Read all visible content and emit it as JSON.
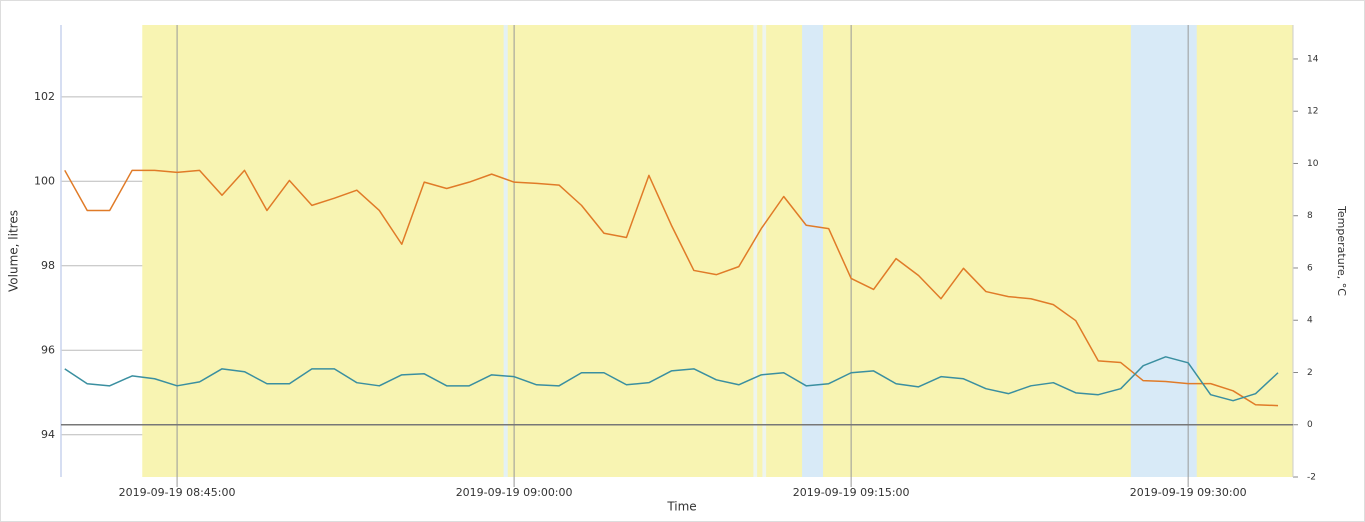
{
  "chart_data": {
    "type": "line",
    "x_label": "Time",
    "y_label": "Volume, litres",
    "y2_label": "Temperature, °C",
    "xlim": [
      "2019-09-19 08:39:50",
      "2019-09-19 09:34:40"
    ],
    "xticks": [
      "2019-09-19 08:45:00",
      "2019-09-19 09:00:00",
      "2019-09-19 09:15:00",
      "2019-09-19 09:30:00"
    ],
    "ylim": [
      93,
      103.7
    ],
    "yticks": [
      94,
      96,
      98,
      100,
      102
    ],
    "y2lim": [
      -2,
      15.3
    ],
    "y2ticks": [
      -2,
      0,
      2,
      4,
      6,
      8,
      10,
      12,
      14
    ],
    "grid": true,
    "bands": [
      {
        "start": "2019-09-19 08:43:27",
        "end": "2019-09-19 09:34:40",
        "color": "#f8f4b2"
      },
      {
        "start": "2019-09-19 08:59:32",
        "end": "2019-09-19 08:59:43",
        "color": "#e4f1f4"
      },
      {
        "start": "2019-09-19 09:10:39",
        "end": "2019-09-19 09:10:49",
        "color": "#eef5ee"
      },
      {
        "start": "2019-09-19 09:11:03",
        "end": "2019-09-19 09:11:13",
        "color": "#eef5ee"
      },
      {
        "start": "2019-09-19 09:12:49",
        "end": "2019-09-19 09:13:45",
        "color": "#d8eaf7"
      },
      {
        "start": "2019-09-19 09:27:27",
        "end": "2019-09-19 09:30:23",
        "color": "#d8eaf7"
      }
    ],
    "x": [
      "2019-09-19 08:40:00",
      "2019-09-19 08:41:00",
      "2019-09-19 08:42:00",
      "2019-09-19 08:43:00",
      "2019-09-19 08:44:00",
      "2019-09-19 08:45:00",
      "2019-09-19 08:46:00",
      "2019-09-19 08:47:00",
      "2019-09-19 08:48:00",
      "2019-09-19 08:49:00",
      "2019-09-19 08:50:00",
      "2019-09-19 08:51:00",
      "2019-09-19 08:52:00",
      "2019-09-19 08:53:00",
      "2019-09-19 08:54:00",
      "2019-09-19 08:55:00",
      "2019-09-19 08:56:00",
      "2019-09-19 08:57:00",
      "2019-09-19 08:58:00",
      "2019-09-19 08:59:00",
      "2019-09-19 09:00:00",
      "2019-09-19 09:01:00",
      "2019-09-19 09:02:00",
      "2019-09-19 09:03:00",
      "2019-09-19 09:04:00",
      "2019-09-19 09:05:00",
      "2019-09-19 09:06:00",
      "2019-09-19 09:07:00",
      "2019-09-19 09:08:00",
      "2019-09-19 09:09:00",
      "2019-09-19 09:10:00",
      "2019-09-19 09:11:00",
      "2019-09-19 09:12:00",
      "2019-09-19 09:13:00",
      "2019-09-19 09:14:00",
      "2019-09-19 09:15:00",
      "2019-09-19 09:16:00",
      "2019-09-19 09:17:00",
      "2019-09-19 09:18:00",
      "2019-09-19 09:19:00",
      "2019-09-19 09:20:00",
      "2019-09-19 09:21:00",
      "2019-09-19 09:22:00",
      "2019-09-19 09:23:00",
      "2019-09-19 09:24:00",
      "2019-09-19 09:25:00",
      "2019-09-19 09:26:00",
      "2019-09-19 09:27:00",
      "2019-09-19 09:28:00",
      "2019-09-19 09:29:00",
      "2019-09-19 09:30:00",
      "2019-09-19 09:31:00",
      "2019-09-19 09:32:00",
      "2019-09-19 09:33:00",
      "2019-09-19 09:34:00"
    ],
    "series": [
      {
        "color": "#e07b28",
        "values": [
          100.26,
          99.31,
          99.31,
          100.26,
          100.26,
          100.21,
          100.26,
          99.67,
          100.26,
          99.31,
          100.02,
          99.43,
          99.6,
          99.79,
          99.31,
          98.51,
          99.98,
          99.83,
          99.98,
          100.17,
          99.98,
          99.95,
          99.91,
          99.43,
          98.77,
          98.67,
          100.14,
          98.96,
          97.89,
          97.79,
          97.98,
          98.88,
          99.64,
          98.96,
          98.88,
          97.7,
          97.44,
          98.17,
          97.77,
          97.22,
          97.94,
          97.39,
          97.27,
          97.22,
          97.08,
          96.7,
          95.75,
          95.71,
          95.28,
          95.26,
          95.21,
          95.21,
          95.04,
          94.71,
          94.69
        ]
      },
      {
        "color": "#3a8fa0",
        "axis": "y2",
        "values": [
          2.14,
          1.57,
          1.49,
          1.87,
          1.76,
          1.49,
          1.64,
          2.14,
          2.03,
          1.57,
          1.57,
          2.14,
          2.14,
          1.61,
          1.49,
          1.91,
          1.95,
          1.49,
          1.49,
          1.91,
          1.84,
          1.53,
          1.49,
          1.99,
          1.99,
          1.53,
          1.61,
          2.06,
          2.14,
          1.72,
          1.53,
          1.91,
          1.99,
          1.49,
          1.57,
          1.99,
          2.06,
          1.57,
          1.45,
          1.84,
          1.76,
          1.38,
          1.19,
          1.49,
          1.61,
          1.22,
          1.15,
          1.38,
          2.26,
          2.6,
          2.37,
          1.15,
          0.92,
          1.19,
          1.99
        ]
      }
    ]
  }
}
